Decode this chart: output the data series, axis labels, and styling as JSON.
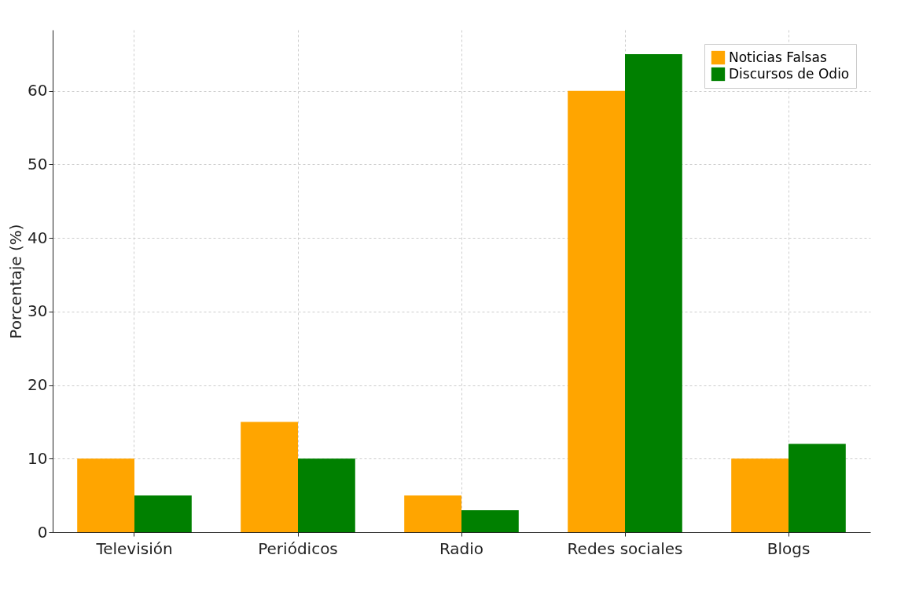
{
  "chart_data": {
    "type": "bar",
    "ylabel": "Porcentaje (%)",
    "categories": [
      "Televisión",
      "Periódicos",
      "Radio",
      "Redes sociales",
      "Blogs"
    ],
    "series": [
      {
        "name": "Noticias Falsas",
        "color": "#ffa500",
        "values": [
          10,
          15,
          5,
          60,
          10
        ]
      },
      {
        "name": "Discursos de Odio",
        "color": "#008000",
        "values": [
          5,
          10,
          3,
          65,
          12
        ]
      }
    ],
    "ylim": [
      0,
      68.3
    ],
    "yticks": [
      0,
      10,
      20,
      30,
      40,
      50,
      60
    ],
    "grid": true,
    "legend": "top right"
  }
}
